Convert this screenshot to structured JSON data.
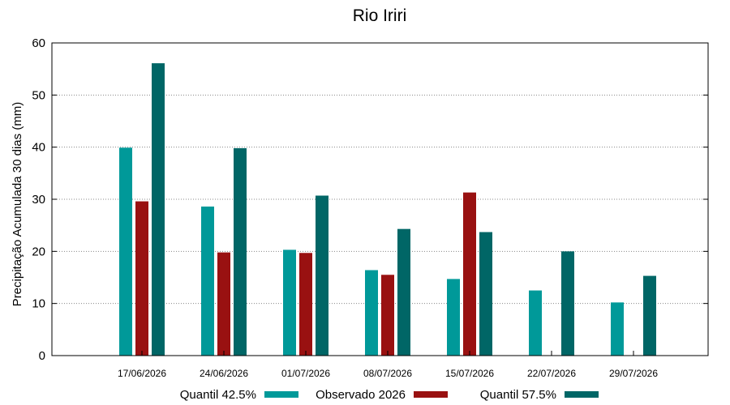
{
  "chart_data": {
    "type": "bar",
    "title": "Rio Iriri",
    "xlabel": "",
    "ylabel": "Precipitação Acumulada 30 dias (mm)",
    "ylim": [
      0,
      60
    ],
    "yticks": [
      0,
      10,
      20,
      30,
      40,
      50,
      60
    ],
    "grid": true,
    "legend_position": "bottom",
    "categories": [
      "17/06/2026",
      "24/06/2026",
      "01/07/2026",
      "08/07/2026",
      "15/07/2026",
      "22/07/2026",
      "29/07/2026"
    ],
    "series": [
      {
        "name": "Quantil 42.5%",
        "color": "#009999",
        "values": [
          39.9,
          28.6,
          20.3,
          16.4,
          14.7,
          12.5,
          10.2
        ]
      },
      {
        "name": "Observado 2026",
        "color": "#991111",
        "values": [
          29.6,
          19.8,
          19.7,
          15.5,
          31.3,
          null,
          null
        ]
      },
      {
        "name": "Quantil 57.5%",
        "color": "#006666",
        "values": [
          56.1,
          39.8,
          30.7,
          24.3,
          23.7,
          20.0,
          15.3
        ]
      }
    ]
  }
}
